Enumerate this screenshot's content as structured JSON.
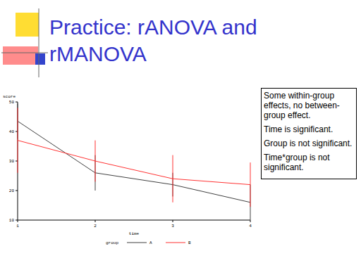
{
  "slide": {
    "title": "Practice: rANOVA and rMANOVA"
  },
  "chart_data": {
    "type": "line",
    "x": [
      1,
      2,
      3,
      4
    ],
    "xlim": [
      1,
      4
    ],
    "xticks": [
      1,
      2,
      3,
      4
    ],
    "ylim": [
      10,
      50
    ],
    "yticks": [
      10,
      20,
      30,
      40,
      50
    ],
    "x_label": "time",
    "y_label": "score",
    "legend_title": "group",
    "legend": "bottom",
    "series": [
      {
        "name": "A",
        "color": "#404040",
        "values": [
          43.5,
          26,
          22,
          16
        ],
        "errors": [
          6,
          6,
          4,
          6
        ]
      },
      {
        "name": "B",
        "color": "#ff3333",
        "values": [
          37,
          30,
          24,
          22
        ],
        "errors": [
          11,
          7,
          8,
          7.5
        ]
      }
    ],
    "annotations": [
      "Some within-group effects, no between-group effect.",
      "Time is significant.",
      "Group is not significant.",
      "Time*group is not significant."
    ]
  }
}
